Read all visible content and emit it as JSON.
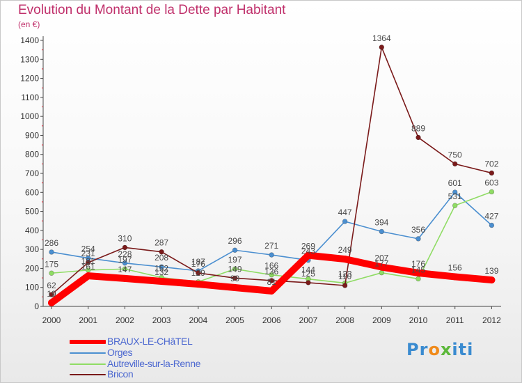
{
  "title": "Evolution du Montant de la Dette par Habitant",
  "subtitle": "(en €)",
  "logo_text": "Proxiti",
  "chart_data": {
    "type": "line",
    "title": "Evolution du Montant de la Dette par Habitant",
    "subtitle": "(en €)",
    "xlabel": "",
    "ylabel": "",
    "categories": [
      "2000",
      "2001",
      "2002",
      "2003",
      "2004",
      "2005",
      "2006",
      "2007",
      "2008",
      "2009",
      "2010",
      "2011",
      "2012"
    ],
    "ylim": [
      0,
      1400
    ],
    "yticks": [
      0,
      100,
      200,
      300,
      400,
      500,
      600,
      700,
      800,
      900,
      1000,
      1100,
      1200,
      1300,
      1400
    ],
    "grid": false,
    "legend_position": "bottom-left",
    "series": [
      {
        "name": "BRAUX-LE-CHâTEL",
        "color": "#ff0000",
        "values": [
          19,
          161,
          147,
          132,
          117,
          99,
          81,
          269,
          249,
          207,
          176,
          156,
          139
        ],
        "labels": [
          "19",
          "161",
          "147",
          "132",
          "",
          "99",
          "81",
          "269",
          "249",
          "207",
          "176",
          "156",
          "139"
        ]
      },
      {
        "name": "Orges",
        "color": "#4b8fd0",
        "values": [
          286,
          254,
          228,
          208,
          187,
          296,
          271,
          243,
          447,
          394,
          356,
          601,
          427
        ],
        "labels": [
          "286",
          "254",
          "228",
          "208",
          "187",
          "296",
          "271",
          "243",
          "447",
          "394",
          "356",
          "601",
          "427"
        ]
      },
      {
        "name": "Autreville-sur-la-Renne",
        "color": "#8fdc64",
        "values": [
          175,
          191,
          197,
          152,
          129,
          197,
          166,
          144,
          123,
          177,
          145,
          531,
          603
        ],
        "labels": [
          "175",
          "191",
          "197",
          "152",
          "129",
          "197",
          "166",
          "144",
          "123",
          "177",
          "145",
          "531",
          "603"
        ]
      },
      {
        "name": "Bricon",
        "color": "#7a1a1a",
        "values": [
          62,
          231,
          310,
          287,
          176,
          149,
          136,
          125,
          110,
          1364,
          889,
          750,
          702
        ],
        "labels": [
          "62",
          "231",
          "310",
          "287",
          "176",
          "149",
          "136",
          "125",
          "110",
          "1364",
          "889",
          "750",
          "702"
        ]
      }
    ]
  },
  "colors": {
    "title": "#c0306b",
    "legend_text": "#4c68d0",
    "axis": "#555555"
  }
}
